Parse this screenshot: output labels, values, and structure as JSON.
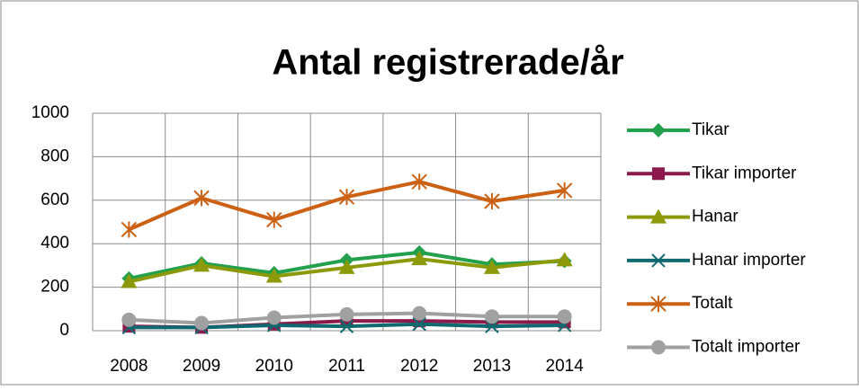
{
  "chart_data": {
    "type": "line",
    "title": "Antal registrerade/år",
    "categories": [
      "2008",
      "2009",
      "2010",
      "2011",
      "2012",
      "2013",
      "2014"
    ],
    "series": [
      {
        "name": "Tikar",
        "color": "#23a04c",
        "marker": "diamond",
        "values": [
          240,
          310,
          265,
          325,
          360,
          305,
          320
        ]
      },
      {
        "name": "Tikar  importer",
        "color": "#8b1a4a",
        "marker": "square",
        "values": [
          20,
          15,
          30,
          45,
          45,
          40,
          40
        ]
      },
      {
        "name": "Hanar",
        "color": "#8c9a0a",
        "marker": "triangle",
        "values": [
          225,
          300,
          250,
          290,
          330,
          290,
          325
        ]
      },
      {
        "name": "Hanar importer",
        "color": "#0e6a6e",
        "marker": "x",
        "values": [
          15,
          15,
          25,
          20,
          30,
          20,
          25
        ]
      },
      {
        "name": "Totalt",
        "color": "#cc6114",
        "marker": "star",
        "values": [
          465,
          610,
          510,
          615,
          685,
          595,
          645
        ]
      },
      {
        "name": "Totalt  importer",
        "color": "#a0a0a0",
        "marker": "circle",
        "values": [
          50,
          35,
          60,
          75,
          80,
          65,
          65
        ]
      }
    ],
    "ylim": [
      0,
      1000
    ],
    "yticks": [
      0,
      200,
      400,
      600,
      800,
      1000
    ],
    "grid": true,
    "legend": "right"
  }
}
